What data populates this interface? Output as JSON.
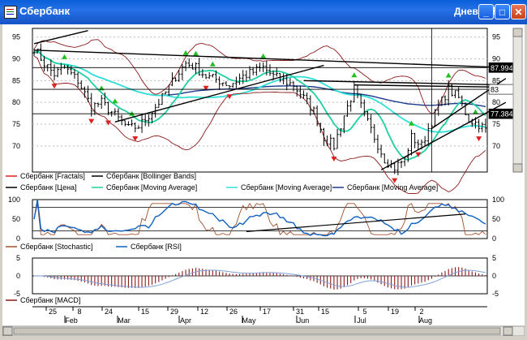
{
  "window": {
    "title": "Сбербанк",
    "period": "Дневной",
    "minimize_label": "_",
    "maximize_label": "□",
    "close_label": "✕"
  },
  "colors": {
    "price": "#000000",
    "bollinger": "#8b1a1a",
    "ma_green": "#1fd0a0",
    "ma_cyan": "#30e0d8",
    "ma_navy": "#1a3a8c",
    "fractal_up": "#20c020",
    "fractal_down": "#e02020",
    "stochastic": "#a0522d",
    "rsi": "#1060c0",
    "macd_hist": "#8b1a1a",
    "macd_signal": "#80a0d8"
  },
  "chart_data": [
    {
      "type": "line",
      "pane": "price",
      "ylim": [
        64,
        97
      ],
      "y_ticks": [
        70,
        75,
        80,
        85,
        90,
        95
      ],
      "price_tags": [
        "87.9946",
        "83",
        "77.3848"
      ],
      "price_tag_levels": [
        87.9946,
        83,
        77.3848
      ],
      "x_ticks": [
        "25",
        "8",
        "24",
        "15",
        "29",
        "12",
        "26",
        "17",
        "31",
        "15",
        "5",
        "19",
        "2"
      ],
      "months": [
        "Feb",
        "Mar",
        "Apr",
        "May",
        "Jun",
        "Jul",
        "Aug"
      ],
      "n_bars": 135,
      "price_keypoints": [
        [
          0,
          92.5
        ],
        [
          3,
          89
        ],
        [
          6,
          86.5
        ],
        [
          9,
          88
        ],
        [
          13,
          85
        ],
        [
          17,
          79
        ],
        [
          20,
          80
        ],
        [
          24,
          77
        ],
        [
          28,
          74
        ],
        [
          31,
          74.5
        ],
        [
          34,
          77
        ],
        [
          38,
          81
        ],
        [
          42,
          86
        ],
        [
          45,
          89
        ],
        [
          48,
          88
        ],
        [
          51,
          86
        ],
        [
          55,
          85
        ],
        [
          58,
          84
        ],
        [
          62,
          86
        ],
        [
          65,
          87
        ],
        [
          68,
          88
        ],
        [
          71,
          86
        ],
        [
          74,
          85
        ],
        [
          77,
          84
        ],
        [
          80,
          81
        ],
        [
          83,
          78
        ],
        [
          86,
          72
        ],
        [
          89,
          70
        ],
        [
          92,
          77
        ],
        [
          95,
          83
        ],
        [
          98,
          77
        ],
        [
          101,
          72
        ],
        [
          104,
          67
        ],
        [
          107,
          65
        ],
        [
          110,
          67
        ],
        [
          112,
          72
        ],
        [
          115,
          70
        ],
        [
          117,
          74
        ],
        [
          120,
          79
        ],
        [
          123,
          83
        ],
        [
          126,
          81
        ],
        [
          129,
          76
        ],
        [
          132,
          75
        ],
        [
          135,
          73
        ],
        [
          138,
          80
        ],
        [
          141,
          84
        ],
        [
          144,
          85
        ],
        [
          147,
          87
        ],
        [
          150,
          86
        ],
        [
          153,
          84
        ]
      ],
      "series": [
        {
          "name": "Сбербанк [Fractals]"
        },
        {
          "name": "Сбербанк [Bollinger Bands]"
        },
        {
          "name": "Сбербанк [Цена]"
        },
        {
          "name": "Сбербанк [Moving Average]"
        },
        {
          "name": "Сбербанк [Moving Average]"
        },
        {
          "name": "Сбербанк [Moving Average]"
        }
      ],
      "trendlines": [
        {
          "points": [
            [
              0,
              93.5
            ],
            [
              16,
              96.5
            ]
          ]
        },
        {
          "points": [
            [
              0,
              92
            ],
            [
              140,
              88
            ]
          ]
        },
        {
          "points": [
            [
              24,
              75.5
            ],
            [
              86,
              88.5
            ]
          ]
        },
        {
          "points": [
            [
              80,
              85
            ],
            [
              140,
              84
            ]
          ]
        },
        {
          "points": [
            [
              95,
              84
            ],
            [
              140,
              83.5
            ]
          ]
        },
        {
          "points": [
            [
              103,
              64.5
            ],
            [
              140,
              80
            ]
          ]
        },
        {
          "points": [
            [
              118,
              74
            ],
            [
              140,
              85.5
            ]
          ]
        }
      ],
      "hlines": [
        87.9946,
        83.0,
        77.3848
      ]
    },
    {
      "type": "line",
      "pane": "oscillators",
      "ylim": [
        0,
        100
      ],
      "y_ticks": [
        0,
        50,
        100
      ],
      "series": [
        {
          "name": "Сбербанк [Stochastic]"
        },
        {
          "name": "Сбербанк [RSI]"
        }
      ]
    },
    {
      "type": "bar",
      "pane": "macd",
      "ylim": [
        -5,
        5
      ],
      "y_ticks": [
        -5,
        0,
        5
      ],
      "series": [
        {
          "name": "Сбербанк [MACD]"
        }
      ]
    }
  ]
}
